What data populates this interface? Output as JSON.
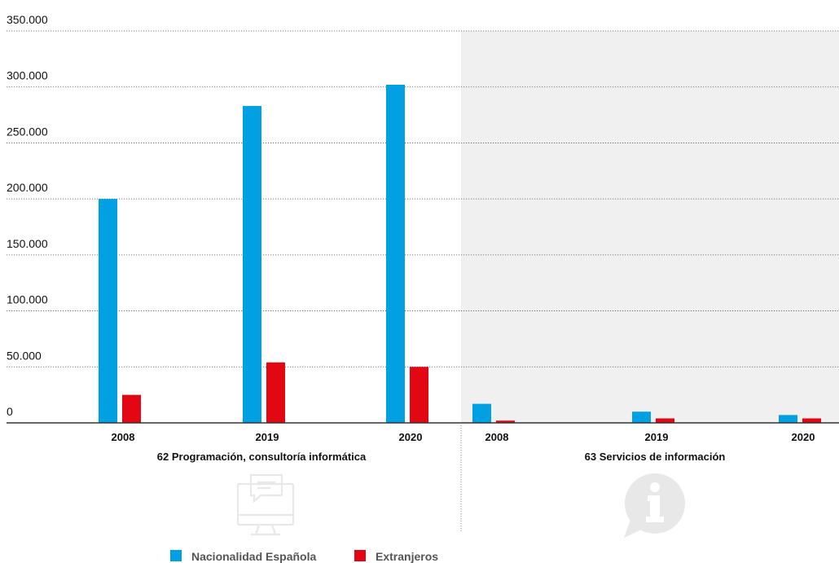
{
  "chart_data": {
    "type": "bar",
    "ylim": [
      0,
      350000
    ],
    "yticks": [
      {
        "value": 0,
        "label": "0"
      },
      {
        "value": 50000,
        "label": "50.000"
      },
      {
        "value": 100000,
        "label": "100.000"
      },
      {
        "value": 150000,
        "label": "150.000"
      },
      {
        "value": 200000,
        "label": "200.000"
      },
      {
        "value": 250000,
        "label": "250.000"
      },
      {
        "value": 300000,
        "label": "300.000"
      },
      {
        "value": 350000,
        "label": "350.000"
      }
    ],
    "groups": [
      {
        "label": "62 Programación, consultoría informática",
        "categories": [
          "2008",
          "2019",
          "2020"
        ],
        "shaded": false
      },
      {
        "label": "63 Servicios de información",
        "categories": [
          "2008",
          "2019",
          "2020"
        ],
        "shaded": true
      }
    ],
    "series": [
      {
        "name": "Nacionalidad Española",
        "color": "#00a0e3",
        "values": [
          200000,
          283000,
          302000,
          17000,
          10000,
          7000
        ]
      },
      {
        "name": "Extranjeros",
        "color": "#e30613",
        "values": [
          25000,
          54000,
          50000,
          2000,
          4000,
          4000
        ]
      }
    ],
    "grid": true,
    "legend_position": "bottom",
    "shade_color": "#f0f0f0",
    "icon_color": "#e8e8e8",
    "icons": [
      "computer-chat-icon",
      "info-bubble-icon"
    ]
  }
}
